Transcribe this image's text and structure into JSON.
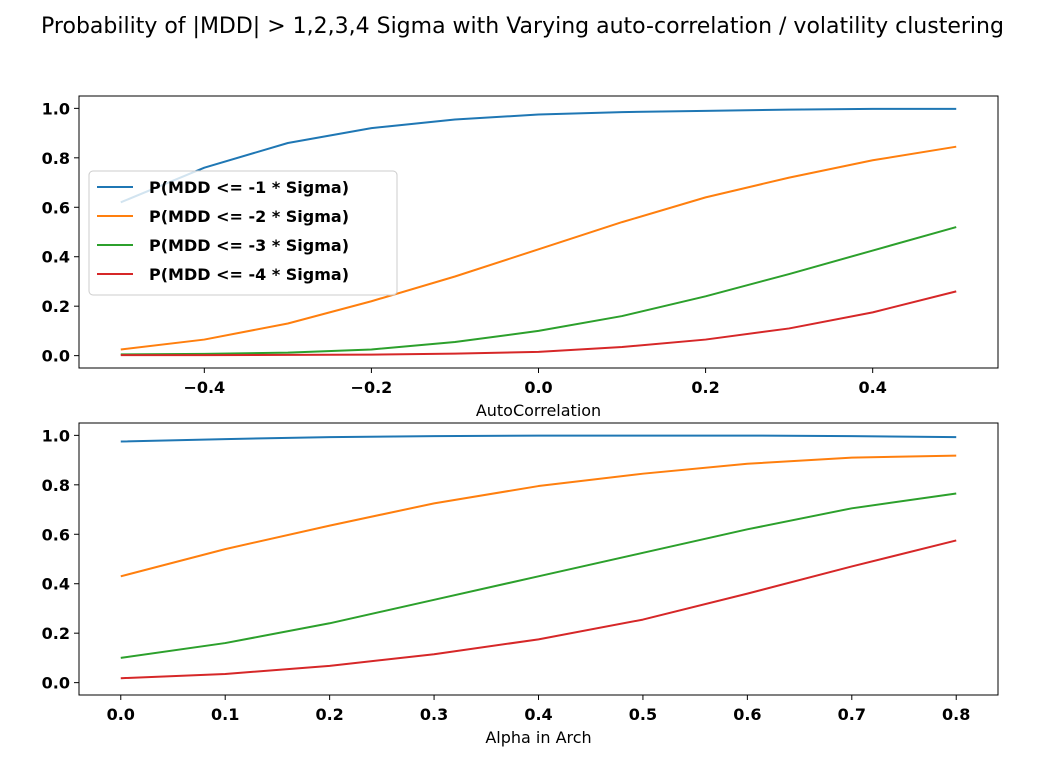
{
  "title": "Probability of |MDD| > 1,2,3,4 Sigma with Varying auto-correlation / volatility clustering",
  "colors": {
    "series": [
      "#1f77b4",
      "#ff7f0e",
      "#2ca02c",
      "#d62728"
    ]
  },
  "chart_data": [
    {
      "type": "line",
      "xlabel": "AutoCorrelation",
      "ylabel": "",
      "xlim": [
        -0.55,
        0.55
      ],
      "ylim": [
        -0.05,
        1.05
      ],
      "xticks": [
        -0.4,
        -0.2,
        0.0,
        0.2,
        0.4
      ],
      "xtick_labels": [
        "−0.4",
        "−0.2",
        "0.0",
        "0.2",
        "0.4"
      ],
      "yticks": [
        0.0,
        0.2,
        0.4,
        0.6,
        0.8,
        1.0
      ],
      "ytick_labels": [
        "0.0",
        "0.2",
        "0.4",
        "0.6",
        "0.8",
        "1.0"
      ],
      "grid": false,
      "legend_position": "center-left",
      "x": [
        -0.5,
        -0.4,
        -0.3,
        -0.2,
        -0.1,
        0.0,
        0.1,
        0.2,
        0.3,
        0.4,
        0.5
      ],
      "series": [
        {
          "name": "P(MDD <= -1 * Sigma)",
          "values": [
            0.62,
            0.76,
            0.86,
            0.92,
            0.955,
            0.975,
            0.985,
            0.99,
            0.995,
            0.998,
            0.998
          ]
        },
        {
          "name": "P(MDD <= -2 * Sigma)",
          "values": [
            0.025,
            0.065,
            0.13,
            0.22,
            0.32,
            0.43,
            0.54,
            0.64,
            0.72,
            0.79,
            0.845
          ]
        },
        {
          "name": "P(MDD <= -3 * Sigma)",
          "values": [
            0.005,
            0.007,
            0.012,
            0.025,
            0.055,
            0.1,
            0.16,
            0.24,
            0.33,
            0.425,
            0.52
          ]
        },
        {
          "name": "P(MDD <= -4 * Sigma)",
          "values": [
            0.002,
            0.002,
            0.003,
            0.004,
            0.008,
            0.015,
            0.035,
            0.065,
            0.11,
            0.175,
            0.26
          ]
        }
      ]
    },
    {
      "type": "line",
      "xlabel": "Alpha in Arch",
      "ylabel": "",
      "xlim": [
        -0.04,
        0.84
      ],
      "ylim": [
        -0.05,
        1.05
      ],
      "xticks": [
        0.0,
        0.1,
        0.2,
        0.3,
        0.4,
        0.5,
        0.6,
        0.7,
        0.8
      ],
      "xtick_labels": [
        "0.0",
        "0.1",
        "0.2",
        "0.3",
        "0.4",
        "0.5",
        "0.6",
        "0.7",
        "0.8"
      ],
      "yticks": [
        0.0,
        0.2,
        0.4,
        0.6,
        0.8,
        1.0
      ],
      "ytick_labels": [
        "0.0",
        "0.2",
        "0.4",
        "0.6",
        "0.8",
        "1.0"
      ],
      "grid": false,
      "x": [
        0.0,
        0.1,
        0.2,
        0.3,
        0.4,
        0.5,
        0.6,
        0.7,
        0.8
      ],
      "series": [
        {
          "values": [
            0.975,
            0.985,
            0.993,
            0.997,
            0.999,
            0.999,
            0.999,
            0.997,
            0.993
          ]
        },
        {
          "values": [
            0.43,
            0.54,
            0.635,
            0.725,
            0.795,
            0.845,
            0.885,
            0.91,
            0.918
          ]
        },
        {
          "values": [
            0.1,
            0.16,
            0.24,
            0.335,
            0.43,
            0.525,
            0.62,
            0.705,
            0.765
          ]
        },
        {
          "values": [
            0.018,
            0.035,
            0.068,
            0.115,
            0.175,
            0.255,
            0.36,
            0.47,
            0.575
          ]
        }
      ]
    }
  ]
}
